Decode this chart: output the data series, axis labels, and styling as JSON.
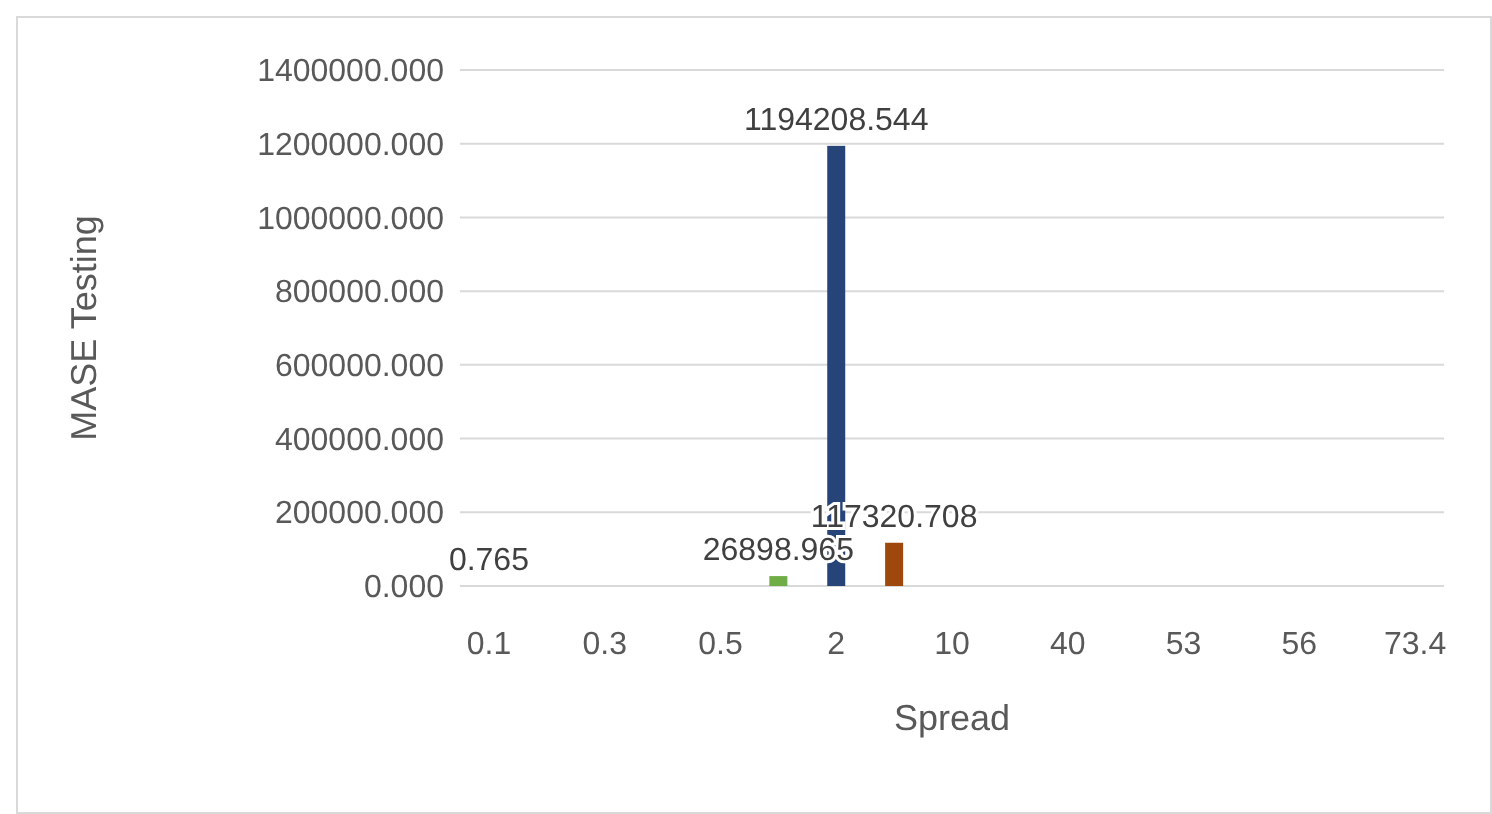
{
  "chart_data": {
    "type": "bar",
    "xlabel": "Spread",
    "ylabel": "MASE Testing",
    "categories": [
      "0.1",
      null,
      "0.3",
      null,
      "0.5",
      null,
      "2",
      null,
      "10",
      null,
      "40",
      null,
      "53",
      null,
      "56",
      null,
      "73.4"
    ],
    "values": [
      0.765,
      0,
      0,
      0,
      0,
      26898.965,
      1194208.544,
      117320.708,
      0,
      0,
      0,
      0,
      0,
      0,
      0,
      0,
      0
    ],
    "value_labels": [
      "0.765",
      null,
      null,
      null,
      null,
      "26898.965",
      "1194208.544",
      "117320.708",
      null,
      null,
      null,
      null,
      null,
      null,
      null,
      null,
      null
    ],
    "colors": [
      "#4472c4",
      "#ed7d31",
      "#a5a5a5",
      "#ffc000",
      "#5b9bd5",
      "#70ad47",
      "#264478",
      "#9e480e",
      "#636363",
      "#997300",
      "#255e91",
      "#43682b",
      "#698ed0",
      "#f1975a",
      "#b7b7b7",
      "#ffcd33",
      "#7cafdd"
    ],
    "ylim": [
      0,
      1400000
    ],
    "yticks": [
      {
        "value": 0,
        "label": "0.000"
      },
      {
        "value": 200000,
        "label": "200000.000"
      },
      {
        "value": 400000,
        "label": "400000.000"
      },
      {
        "value": 600000,
        "label": "600000.000"
      },
      {
        "value": 800000,
        "label": "800000.000"
      },
      {
        "value": 1000000,
        "label": "1000000.000"
      },
      {
        "value": 1200000,
        "label": "1200000.000"
      },
      {
        "value": 1400000,
        "label": "1400000.000"
      }
    ],
    "grid": "y"
  }
}
